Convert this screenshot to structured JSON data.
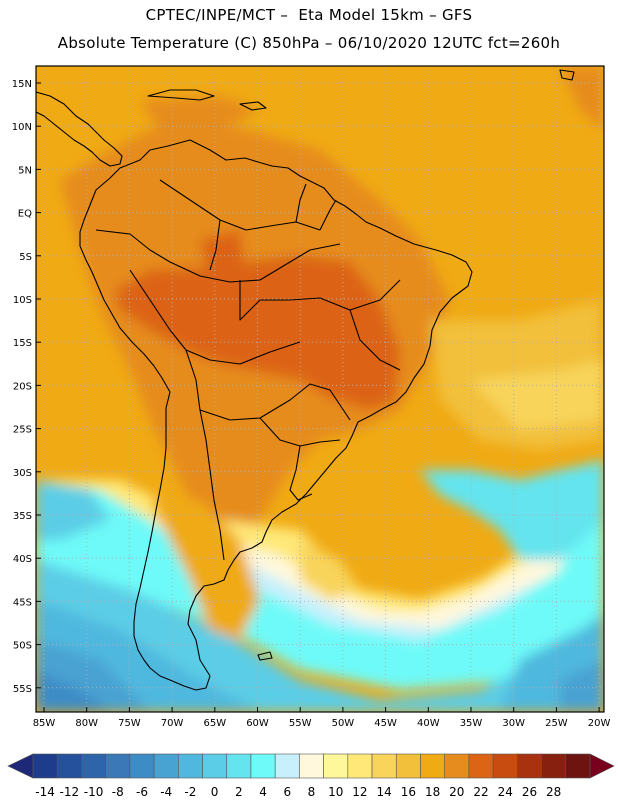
{
  "header": {
    "line1": "CPTEC/INPE/MCT –  Eta Model 15km – GFS",
    "line2": "Absolute Temperature (C) 850hPa – 06/10/2020 12UTC fct=260h"
  },
  "lat_ticks": [
    "15N",
    "10N",
    "5N",
    "EQ",
    "5S",
    "10S",
    "15S",
    "20S",
    "25S",
    "30S",
    "35S",
    "40S",
    "45S",
    "50S",
    "55S"
  ],
  "lon_ticks": [
    "85W",
    "80W",
    "75W",
    "70W",
    "65W",
    "60W",
    "55W",
    "50W",
    "45W",
    "40W",
    "35W",
    "30W",
    "25W",
    "20W"
  ],
  "colorbar": {
    "labels": [
      "-14",
      "-12",
      "-10",
      "-8",
      "-6",
      "-4",
      "-2",
      "0",
      "2",
      "4",
      "6",
      "8",
      "10",
      "12",
      "14",
      "16",
      "18",
      "20",
      "22",
      "24",
      "26",
      "28"
    ],
    "colors": [
      "#1e3c8c",
      "#25509c",
      "#2d64aa",
      "#3a78b8",
      "#3e8cc6",
      "#48a2d2",
      "#50b8de",
      "#5ccde6",
      "#64e4ee",
      "#6efaf8",
      "#c8f0fc",
      "#fff8dc",
      "#fff89a",
      "#ffe878",
      "#f8d45a",
      "#f2c03a",
      "#f0aa14",
      "#e68c1e",
      "#dc6414",
      "#c84b10",
      "#a83210",
      "#882010",
      "#6e1410"
    ],
    "end_colors": [
      "#1e2878",
      "#78001e"
    ]
  }
}
